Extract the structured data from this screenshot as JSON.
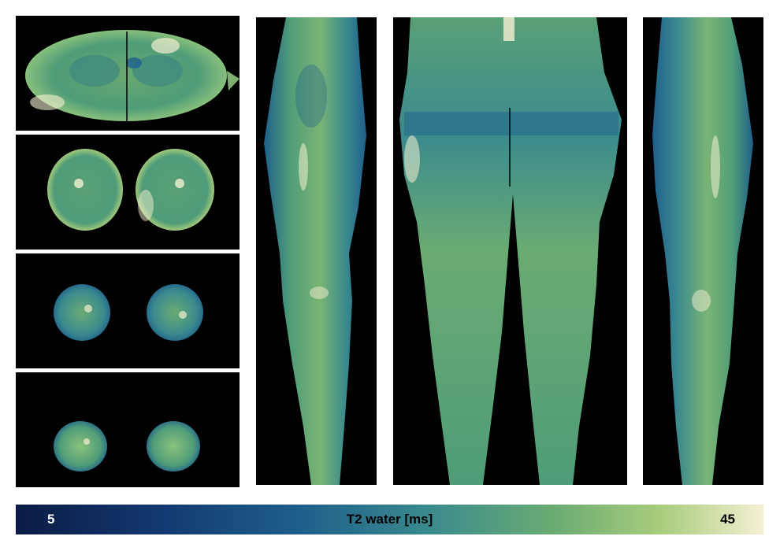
{
  "figure": {
    "colormap": {
      "min_label": "5",
      "max_label": "45",
      "title": "T2 water [ms]",
      "stops": [
        "#0b1b45",
        "#133a72",
        "#1f5f8c",
        "#3a8a8e",
        "#6aab72",
        "#a7cc7c",
        "#f4f0d2"
      ]
    },
    "panels": {
      "axial": [
        "pelvis",
        "upper-thigh",
        "knee",
        "lower-leg"
      ],
      "longitudinal": [
        "sagittal-left",
        "coronal",
        "sagittal-right"
      ]
    },
    "tissue_color": "#4f9c78",
    "background_color": "#000000"
  }
}
